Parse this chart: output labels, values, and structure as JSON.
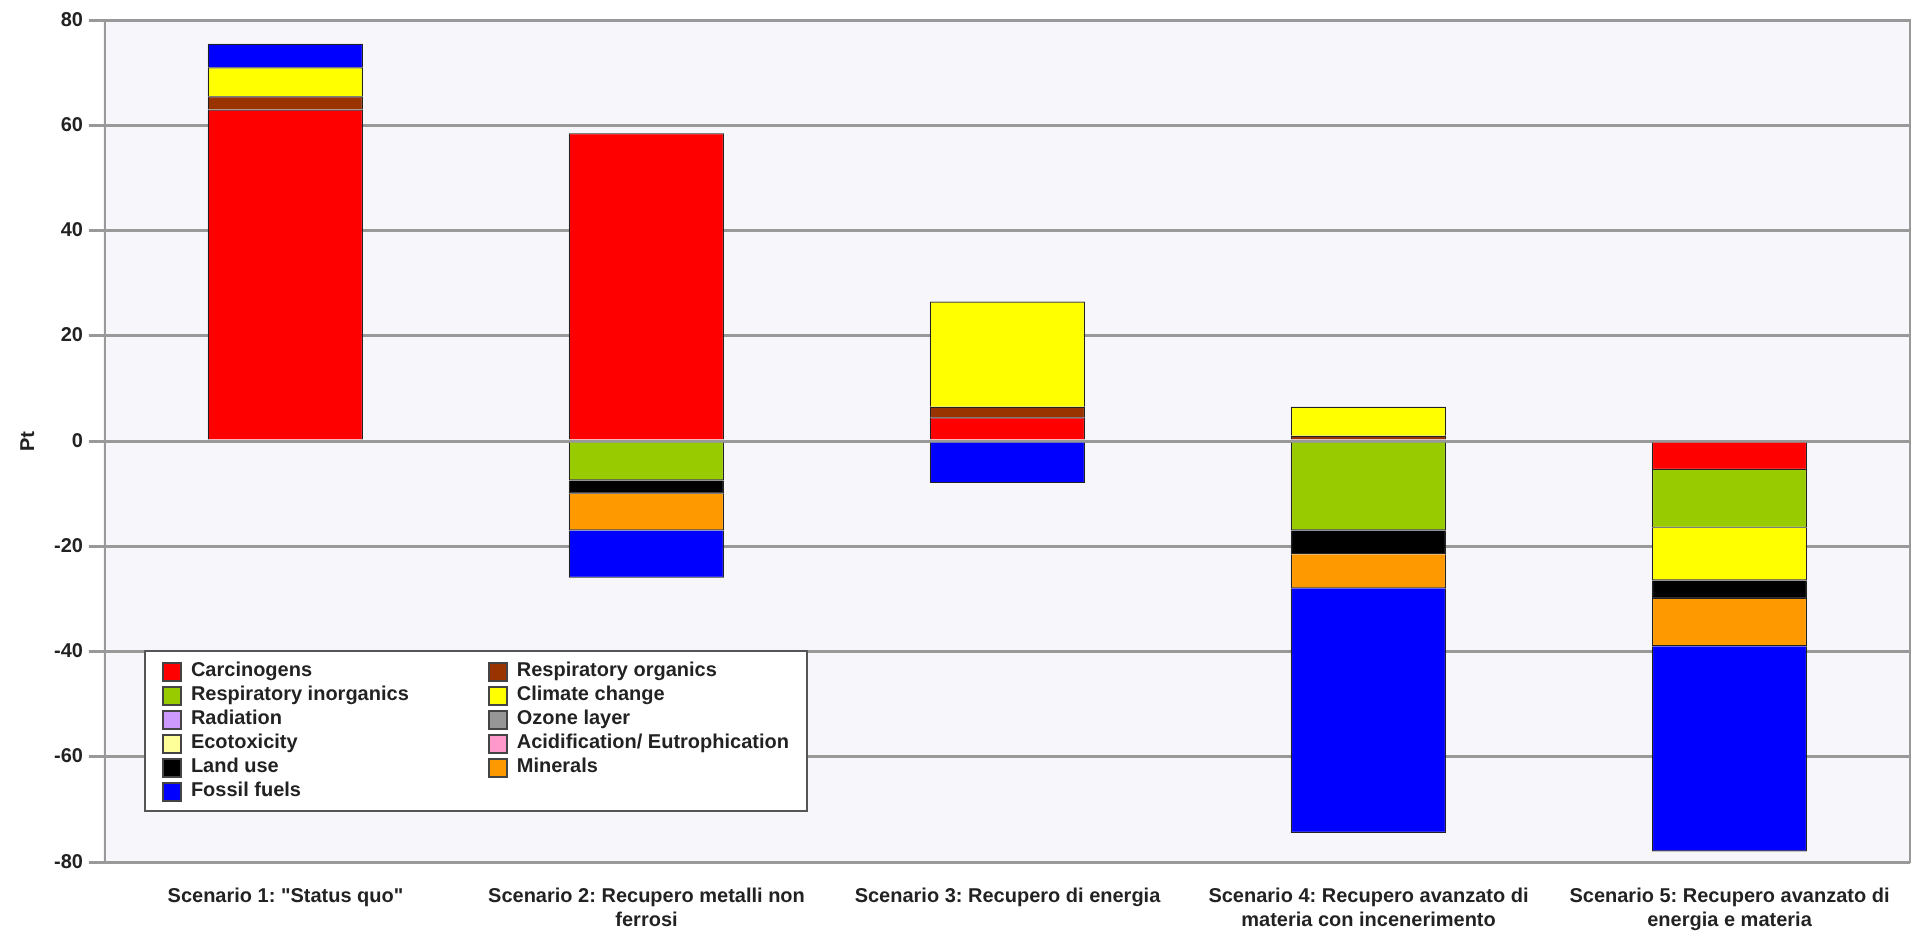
{
  "chart_data": {
    "type": "bar",
    "stacked": true,
    "ylabel": "Pt",
    "categories": [
      "Scenario 1: \"Status quo\"",
      "Scenario 2: Recupero metalli non ferrosi",
      "Scenario 3: Recupero di energia",
      "Scenario 4: Recupero avanzato di materia con incenerimento",
      "Scenario 5: Recupero avanzato di energia e materia"
    ],
    "series": [
      {
        "name": "Carcinogens",
        "color": "#ff0000",
        "values": [
          63,
          58.5,
          4.5,
          0,
          -5.5
        ]
      },
      {
        "name": "Respiratory organics",
        "color": "#993300",
        "values": [
          2.5,
          0,
          2,
          1,
          0
        ]
      },
      {
        "name": "Respiratory inorganics",
        "color": "#99cc00",
        "values": [
          0,
          -7.5,
          0,
          -17,
          -11
        ]
      },
      {
        "name": "Climate change",
        "color": "#ffff00",
        "values": [
          5.5,
          0,
          20,
          5.5,
          -10
        ]
      },
      {
        "name": "Radiation",
        "color": "#cc99ff",
        "values": [
          0,
          0,
          0,
          0,
          0
        ]
      },
      {
        "name": "Ozone layer",
        "color": "#969696",
        "values": [
          0,
          0,
          0,
          0,
          0
        ]
      },
      {
        "name": "Ecotoxicity",
        "color": "#ffff99",
        "values": [
          0,
          0,
          0,
          0,
          0
        ]
      },
      {
        "name": "Acidification/ Eutrophication",
        "color": "#ff99cc",
        "values": [
          0,
          0,
          0,
          0,
          0
        ]
      },
      {
        "name": "Land use",
        "color": "#000000",
        "values": [
          0,
          -2.5,
          0,
          -4.5,
          -3.5
        ]
      },
      {
        "name": "Minerals",
        "color": "#ff9900",
        "values": [
          0,
          -7,
          0,
          -6.5,
          -9
        ]
      },
      {
        "name": "Fossil fuels",
        "color": "#0000ff",
        "values": [
          4.5,
          -9,
          -8,
          -46.5,
          -39
        ]
      }
    ],
    "ylim": [
      -80,
      80
    ],
    "yticks": [
      -80,
      -60,
      -40,
      -20,
      0,
      20,
      40,
      60,
      80
    ],
    "grid": "y",
    "legend": "bottom left"
  }
}
